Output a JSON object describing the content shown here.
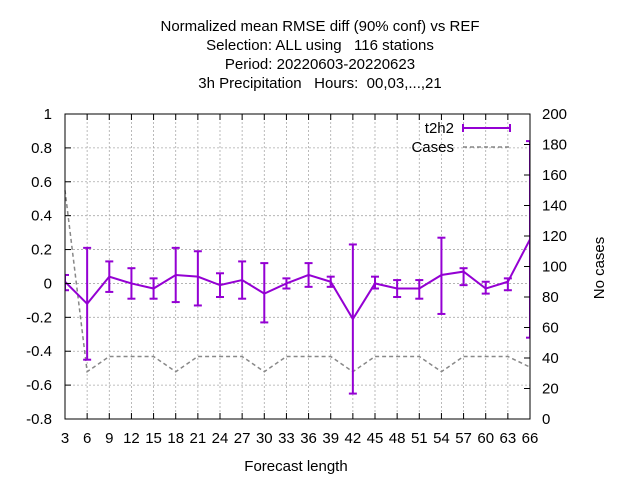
{
  "titles": [
    "Normalized mean RMSE diff (90% conf) vs REF",
    "Selection: ALL using   116 stations",
    "Period: 20220603-20220623",
    "3h Precipitation   Hours:  00,03,...,21"
  ],
  "chart_data": {
    "type": "line",
    "xlabel": "Forecast length",
    "ylabel": "",
    "y2label": "No cases",
    "xlim": [
      3,
      66
    ],
    "ylim": [
      -0.8,
      1.0
    ],
    "y2lim": [
      0,
      200
    ],
    "x": [
      3,
      6,
      9,
      12,
      15,
      18,
      21,
      24,
      27,
      30,
      33,
      36,
      39,
      42,
      45,
      48,
      51,
      54,
      57,
      60,
      63,
      66
    ],
    "x_ticks": [
      3,
      6,
      9,
      12,
      15,
      18,
      21,
      24,
      27,
      30,
      33,
      36,
      39,
      42,
      45,
      48,
      51,
      54,
      57,
      60,
      63,
      66
    ],
    "y_ticks": [
      -0.8,
      -0.6,
      -0.4,
      -0.2,
      0,
      0.2,
      0.4,
      0.6,
      0.8,
      1
    ],
    "y_tick_labels": [
      "-0.8",
      "-0.6",
      "-0.4",
      "-0.2",
      "0",
      "0.2",
      "0.4",
      "0.6",
      "0.8",
      "1"
    ],
    "y2_ticks": [
      0,
      20,
      40,
      60,
      80,
      100,
      120,
      140,
      160,
      180,
      200
    ],
    "grid": true,
    "legend_position": "top-right",
    "series": [
      {
        "name": "t2h2",
        "color": "#9400d3",
        "style": "line-errorbars",
        "axis": "y",
        "values": [
          0.01,
          -0.12,
          0.04,
          0.0,
          -0.03,
          0.05,
          0.04,
          -0.01,
          0.02,
          -0.06,
          0.0,
          0.05,
          0.01,
          -0.21,
          0.0,
          -0.03,
          -0.03,
          0.05,
          0.07,
          -0.03,
          0.01,
          0.26
        ],
        "err_low": [
          -0.04,
          -0.45,
          -0.05,
          -0.09,
          -0.09,
          -0.11,
          -0.13,
          -0.08,
          -0.09,
          -0.23,
          -0.03,
          -0.02,
          -0.02,
          -0.65,
          -0.03,
          -0.08,
          -0.09,
          -0.18,
          -0.01,
          -0.06,
          -0.04,
          -0.32
        ],
        "err_high": [
          0.05,
          0.21,
          0.13,
          0.09,
          0.03,
          0.21,
          0.19,
          0.06,
          0.13,
          0.12,
          0.03,
          0.12,
          0.04,
          0.23,
          0.04,
          0.02,
          0.02,
          0.27,
          0.09,
          0.01,
          0.03,
          0.84
        ]
      },
      {
        "name": "Cases",
        "color": "#888888",
        "style": "dashed",
        "axis": "y2",
        "values": [
          150,
          31,
          41,
          41,
          41,
          31,
          41,
          41,
          41,
          31,
          41,
          41,
          41,
          31,
          41,
          41,
          41,
          31,
          41,
          41,
          41,
          34
        ]
      }
    ]
  }
}
